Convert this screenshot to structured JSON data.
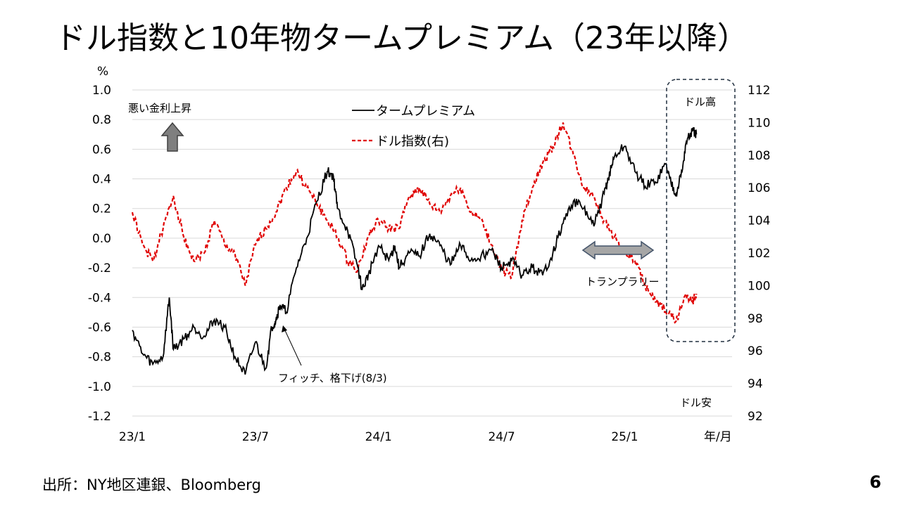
{
  "slide": {
    "title": "ドル指数と10年物タームプレミアム（23年以降）",
    "source": "出所：NY地区連銀、Bloomberg",
    "page_number": "6"
  },
  "colors": {
    "term_premium": "#000000",
    "dollar_index": "#e00000",
    "arrow_fill": "#7f7f7f",
    "double_arrow_fill": "#a6a6a6",
    "double_arrow_stroke": "#44546a",
    "box_stroke": "#1f2d3d"
  },
  "annotations": {
    "bad_rate_rise": "悪い金利上昇",
    "fitch_downgrade": "フィッチ、格下げ(8/3)",
    "trump_rally": "トランプラリー",
    "dollar_high": "ドル高",
    "dollar_low": "ドル安"
  },
  "chart_data": {
    "type": "line",
    "title": "",
    "xlabel": "年/月",
    "ylabel_left": "%",
    "x_ticks": [
      "23/1",
      "23/7",
      "24/1",
      "24/7",
      "25/1"
    ],
    "x_range_months": [
      0,
      28
    ],
    "y_left_range": [
      -1.2,
      1.0
    ],
    "y_left_ticks": [
      "1.0",
      "0.8",
      "0.6",
      "0.4",
      "0.2",
      "0.0",
      "-0.2",
      "-0.4",
      "-0.6",
      "-0.8",
      "-1.0",
      "-1.2"
    ],
    "y_right_range": [
      92,
      112
    ],
    "y_right_ticks": [
      "112",
      "110",
      "108",
      "106",
      "104",
      "102",
      "100",
      "98",
      "96",
      "94",
      "92"
    ],
    "grid": true,
    "legend": "top-center",
    "series": [
      {
        "name": "タームプレミアム",
        "axis": "left",
        "style": "solid",
        "x": [
          0,
          0.5,
          1,
          1.5,
          1.8,
          2,
          2.5,
          3,
          3.5,
          4,
          4.5,
          5,
          5.5,
          6,
          6.5,
          6.8,
          7,
          7.2,
          7.5,
          8,
          8.5,
          9,
          9.5,
          9.8,
          10,
          10.5,
          11,
          11.2,
          11.5,
          12,
          12.5,
          12.8,
          13,
          13.5,
          14,
          14.5,
          15,
          15.5,
          16,
          16.5,
          17,
          17.5,
          18,
          18.5,
          19,
          19.5,
          20,
          20.5,
          21,
          21.5,
          22,
          22.5,
          23,
          23.2,
          23.5,
          24,
          24.5,
          25,
          25.5,
          26,
          26.2,
          26.5,
          26.8,
          27,
          27.3,
          27.5
        ],
        "values": [
          -0.62,
          -0.78,
          -0.85,
          -0.8,
          -0.4,
          -0.75,
          -0.68,
          -0.6,
          -0.66,
          -0.55,
          -0.6,
          -0.8,
          -0.92,
          -0.7,
          -0.88,
          -0.6,
          -0.55,
          -0.45,
          -0.5,
          -0.2,
          0.0,
          0.25,
          0.45,
          0.42,
          0.2,
          0.05,
          -0.2,
          -0.35,
          -0.25,
          -0.05,
          -0.15,
          -0.05,
          -0.2,
          -0.1,
          -0.12,
          0.03,
          -0.05,
          -0.18,
          -0.05,
          -0.15,
          -0.12,
          -0.08,
          -0.2,
          -0.15,
          -0.25,
          -0.2,
          -0.25,
          -0.1,
          0.1,
          0.25,
          0.2,
          0.08,
          0.3,
          0.4,
          0.55,
          0.62,
          0.45,
          0.35,
          0.38,
          0.5,
          0.4,
          0.3,
          0.45,
          0.65,
          0.72,
          0.7
        ]
      },
      {
        "name": "ドル指数(右)",
        "axis": "right",
        "style": "dashed",
        "x": [
          0,
          0.5,
          1,
          1.5,
          2,
          2.5,
          3,
          3.5,
          4,
          4.5,
          5,
          5.5,
          6,
          6.5,
          7,
          7.5,
          8,
          8.5,
          9,
          9.5,
          10,
          10.5,
          11,
          11.5,
          12,
          12.5,
          13,
          13.5,
          14,
          14.5,
          15,
          15.5,
          16,
          16.5,
          17,
          17.5,
          18,
          18.5,
          19,
          19.5,
          20,
          20.5,
          21,
          21.5,
          22,
          22.5,
          23,
          23.5,
          24,
          24.5,
          25,
          25.5,
          26,
          26.5,
          27,
          27.3,
          27.5
        ],
        "values": [
          104.5,
          102.5,
          101.5,
          103.5,
          105.5,
          103,
          101.5,
          102,
          104,
          102.5,
          102,
          100,
          102.5,
          103.5,
          104.5,
          106,
          107,
          106,
          105,
          104,
          103,
          101.5,
          101,
          103,
          104,
          103.5,
          103.5,
          105.5,
          106,
          105,
          104.5,
          105.5,
          106,
          104.5,
          104,
          102.5,
          101,
          100.5,
          104,
          106,
          107.5,
          108.5,
          110,
          108,
          106,
          105.5,
          104,
          103,
          102,
          101.5,
          100,
          99,
          98.5,
          97.8,
          99.5,
          99,
          99.5
        ]
      }
    ]
  }
}
